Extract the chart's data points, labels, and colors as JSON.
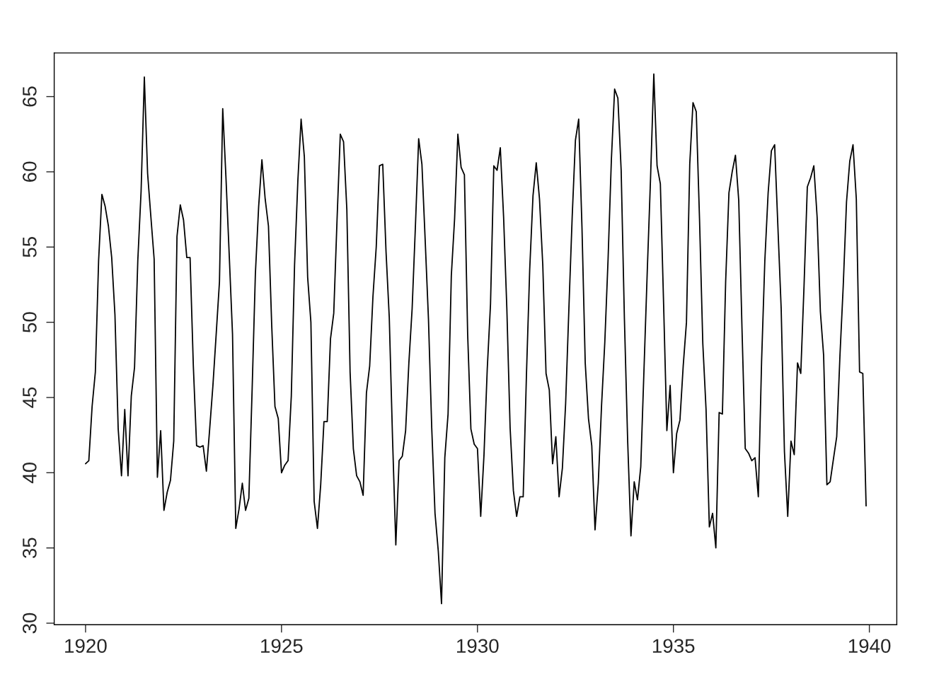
{
  "chart_data": {
    "type": "line",
    "color": "#000000",
    "marker": "none",
    "line_style": "solid",
    "grid": false,
    "x": [
      1920.0,
      1920.083,
      1920.167,
      1920.25,
      1920.333,
      1920.417,
      1920.5,
      1920.583,
      1920.667,
      1920.75,
      1920.833,
      1920.917,
      1921.0,
      1921.083,
      1921.167,
      1921.25,
      1921.333,
      1921.417,
      1921.5,
      1921.583,
      1921.667,
      1921.75,
      1921.833,
      1921.917,
      1922.0,
      1922.083,
      1922.167,
      1922.25,
      1922.333,
      1922.417,
      1922.5,
      1922.583,
      1922.667,
      1922.75,
      1922.833,
      1922.917,
      1923.0,
      1923.083,
      1923.167,
      1923.25,
      1923.333,
      1923.417,
      1923.5,
      1923.583,
      1923.667,
      1923.75,
      1923.833,
      1923.917,
      1924.0,
      1924.083,
      1924.167,
      1924.25,
      1924.333,
      1924.417,
      1924.5,
      1924.583,
      1924.667,
      1924.75,
      1924.833,
      1924.917,
      1925.0,
      1925.083,
      1925.167,
      1925.25,
      1925.333,
      1925.417,
      1925.5,
      1925.583,
      1925.667,
      1925.75,
      1925.833,
      1925.917,
      1926.0,
      1926.083,
      1926.167,
      1926.25,
      1926.333,
      1926.417,
      1926.5,
      1926.583,
      1926.667,
      1926.75,
      1926.833,
      1926.917,
      1927.0,
      1927.083,
      1927.167,
      1927.25,
      1927.333,
      1927.417,
      1927.5,
      1927.583,
      1927.667,
      1927.75,
      1927.833,
      1927.917,
      1928.0,
      1928.083,
      1928.167,
      1928.25,
      1928.333,
      1928.417,
      1928.5,
      1928.583,
      1928.667,
      1928.75,
      1928.833,
      1928.917,
      1929.0,
      1929.083,
      1929.167,
      1929.25,
      1929.333,
      1929.417,
      1929.5,
      1929.583,
      1929.667,
      1929.75,
      1929.833,
      1929.917,
      1930.0,
      1930.083,
      1930.167,
      1930.25,
      1930.333,
      1930.417,
      1930.5,
      1930.583,
      1930.667,
      1930.75,
      1930.833,
      1930.917,
      1931.0,
      1931.083,
      1931.167,
      1931.25,
      1931.333,
      1931.417,
      1931.5,
      1931.583,
      1931.667,
      1931.75,
      1931.833,
      1931.917,
      1932.0,
      1932.083,
      1932.167,
      1932.25,
      1932.333,
      1932.417,
      1932.5,
      1932.583,
      1932.667,
      1932.75,
      1932.833,
      1932.917,
      1933.0,
      1933.083,
      1933.167,
      1933.25,
      1933.333,
      1933.417,
      1933.5,
      1933.583,
      1933.667,
      1933.75,
      1933.833,
      1933.917,
      1934.0,
      1934.083,
      1934.167,
      1934.25,
      1934.333,
      1934.417,
      1934.5,
      1934.583,
      1934.667,
      1934.75,
      1934.833,
      1934.917,
      1935.0,
      1935.083,
      1935.167,
      1935.25,
      1935.333,
      1935.417,
      1935.5,
      1935.583,
      1935.667,
      1935.75,
      1935.833,
      1935.917,
      1936.0,
      1936.083,
      1936.167,
      1936.25,
      1936.333,
      1936.417,
      1936.5,
      1936.583,
      1936.667,
      1936.75,
      1936.833,
      1936.917,
      1937.0,
      1937.083,
      1937.167,
      1937.25,
      1937.333,
      1937.417,
      1937.5,
      1937.583,
      1937.667,
      1937.75,
      1937.833,
      1937.917,
      1938.0,
      1938.083,
      1938.167,
      1938.25,
      1938.333,
      1938.417,
      1938.5,
      1938.583,
      1938.667,
      1938.75,
      1938.833,
      1938.917,
      1939.0,
      1939.083,
      1939.167,
      1939.25,
      1939.333,
      1939.417,
      1939.5,
      1939.583,
      1939.667,
      1939.75,
      1939.833,
      1939.917
    ],
    "values": [
      40.6,
      40.8,
      44.4,
      46.7,
      54.1,
      58.5,
      57.7,
      56.4,
      54.3,
      50.5,
      42.9,
      39.8,
      44.2,
      39.8,
      45.1,
      47.0,
      54.1,
      58.7,
      66.3,
      59.9,
      57.0,
      54.2,
      39.7,
      42.8,
      37.5,
      38.7,
      39.5,
      42.1,
      55.7,
      57.8,
      56.8,
      54.3,
      54.3,
      47.1,
      41.8,
      41.7,
      41.8,
      40.1,
      42.9,
      45.8,
      49.2,
      52.7,
      64.2,
      59.6,
      54.4,
      49.2,
      36.3,
      37.6,
      39.3,
      37.5,
      38.3,
      45.5,
      53.2,
      57.7,
      60.8,
      58.2,
      56.4,
      49.8,
      44.4,
      43.6,
      40.0,
      40.5,
      40.8,
      45.1,
      53.8,
      59.4,
      63.5,
      61.0,
      53.0,
      50.0,
      38.1,
      36.3,
      39.2,
      43.4,
      43.4,
      48.9,
      50.6,
      56.8,
      62.5,
      62.0,
      57.5,
      46.7,
      41.6,
      39.8,
      39.4,
      38.5,
      45.3,
      47.1,
      51.7,
      55.0,
      60.4,
      60.5,
      54.7,
      50.3,
      42.3,
      35.2,
      40.8,
      41.1,
      42.8,
      47.3,
      50.9,
      56.4,
      62.2,
      60.5,
      55.4,
      50.2,
      43.0,
      37.3,
      34.8,
      31.3,
      41.0,
      43.9,
      53.1,
      56.9,
      62.5,
      60.3,
      59.8,
      49.2,
      42.9,
      41.9,
      41.6,
      37.1,
      41.2,
      46.9,
      51.2,
      60.4,
      60.1,
      61.6,
      57.0,
      50.9,
      43.0,
      38.8,
      37.1,
      38.4,
      38.4,
      46.5,
      53.5,
      58.4,
      60.6,
      58.2,
      53.8,
      46.6,
      45.5,
      40.6,
      42.4,
      38.4,
      40.3,
      44.6,
      50.9,
      57.0,
      62.1,
      63.5,
      56.3,
      47.3,
      43.6,
      41.8,
      36.2,
      39.3,
      44.5,
      48.7,
      54.2,
      60.8,
      65.5,
      64.9,
      60.1,
      50.2,
      42.1,
      35.8,
      39.4,
      38.2,
      40.4,
      46.9,
      53.4,
      59.6,
      66.5,
      60.4,
      59.2,
      51.2,
      42.8,
      45.8,
      40.0,
      42.6,
      43.5,
      47.1,
      50.0,
      60.5,
      64.6,
      64.0,
      56.8,
      48.6,
      44.2,
      36.4,
      37.3,
      35.0,
      44.0,
      43.9,
      52.7,
      58.6,
      60.0,
      61.1,
      58.1,
      49.6,
      41.6,
      41.3,
      40.8,
      41.0,
      38.4,
      47.4,
      54.1,
      58.6,
      61.4,
      61.8,
      56.3,
      50.9,
      41.4,
      37.1,
      42.1,
      41.2,
      47.3,
      46.6,
      52.4,
      59.0,
      59.6,
      60.4,
      57.0,
      50.7,
      47.8,
      39.2,
      39.4,
      40.9,
      42.4,
      47.8,
      52.4,
      58.0,
      60.7,
      61.8,
      58.2,
      46.7,
      46.6,
      37.8
    ],
    "xlim": [
      1919.2,
      1940.7
    ],
    "ylim": [
      29.9,
      67.9
    ],
    "xticks": [
      1920,
      1925,
      1930,
      1935,
      1940
    ],
    "yticks": [
      30,
      35,
      40,
      45,
      50,
      55,
      60,
      65
    ]
  }
}
